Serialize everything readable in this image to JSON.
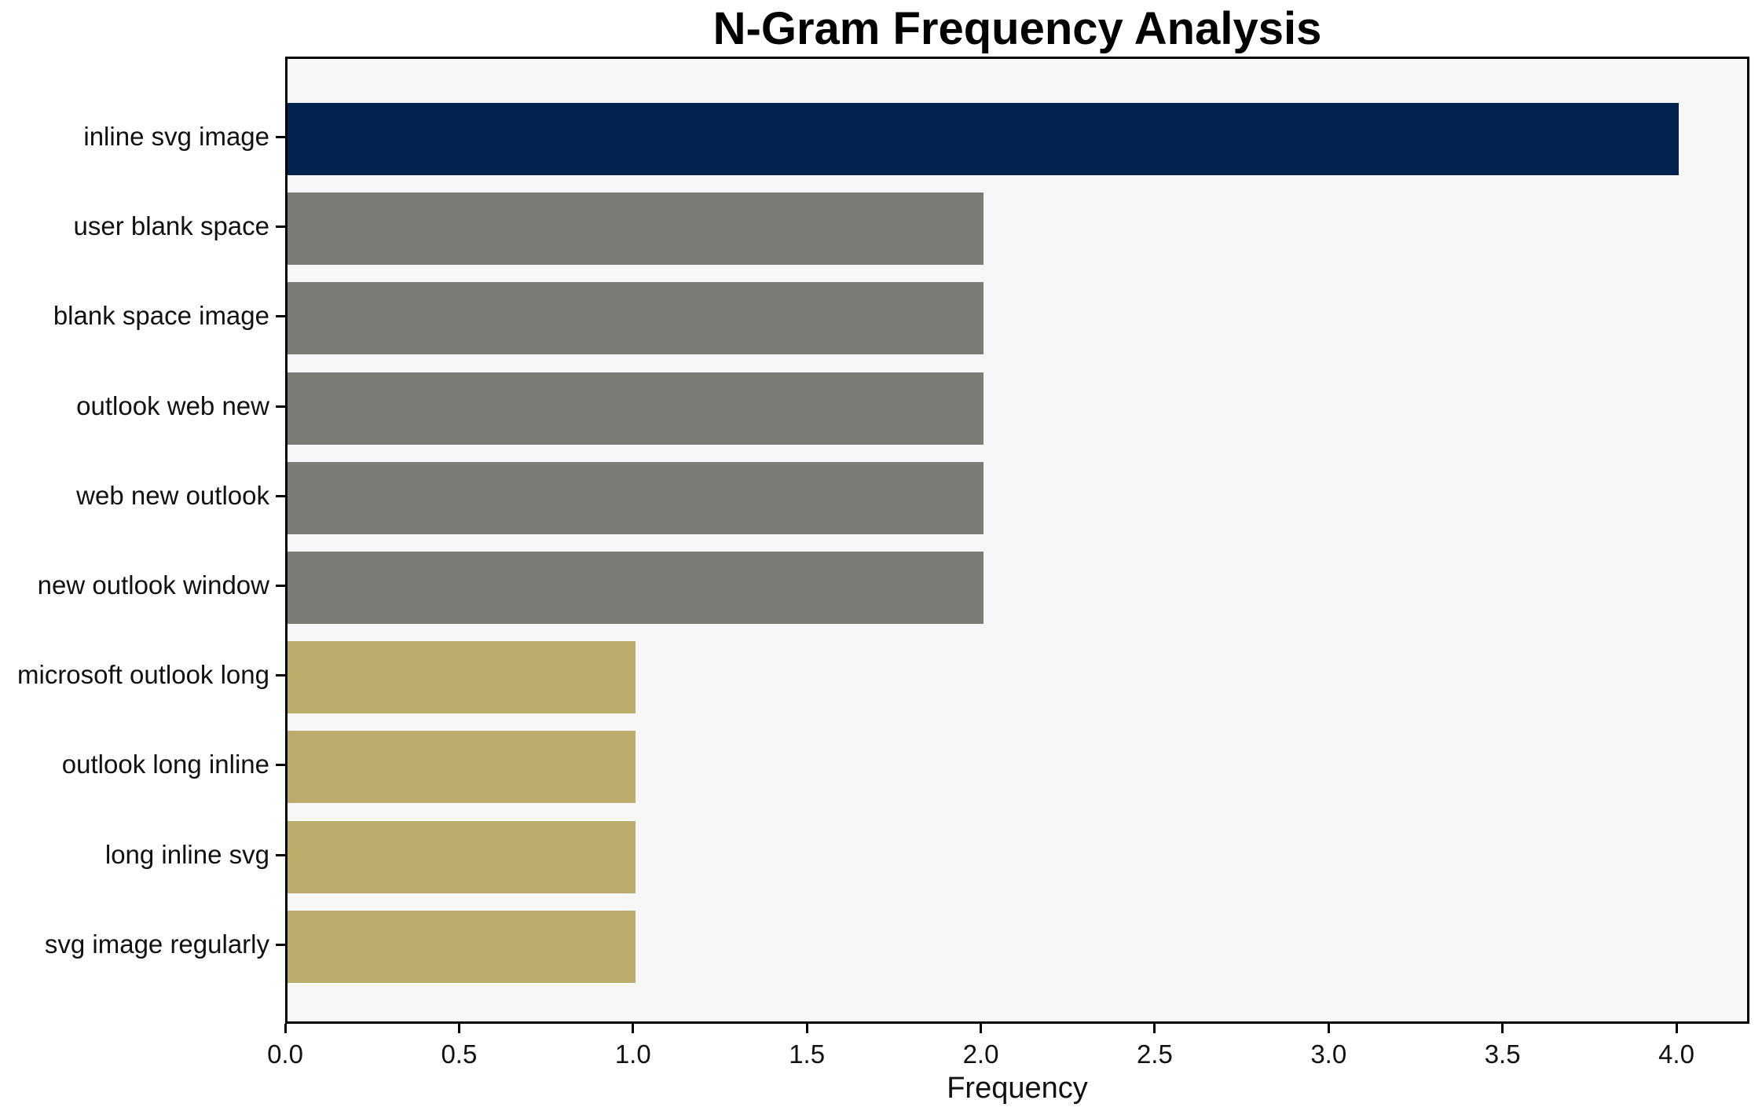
{
  "chart_data": {
    "type": "bar",
    "orientation": "horizontal",
    "title": "N-Gram Frequency Analysis",
    "xlabel": "Frequency",
    "ylabel": "",
    "categories": [
      "inline svg image",
      "user blank space",
      "blank space image",
      "outlook web new",
      "web new outlook",
      "new outlook window",
      "microsoft outlook long",
      "outlook long inline",
      "long inline svg",
      "svg image regularly"
    ],
    "values": [
      4,
      2,
      2,
      2,
      2,
      2,
      1,
      1,
      1,
      1
    ],
    "bar_colors": [
      "#03224D",
      "#7B7B77",
      "#7B7B77",
      "#7B7B77",
      "#7B7B77",
      "#7B7B77",
      "#BCAD6D",
      "#BCAD6D",
      "#BCAD6D",
      "#BCAD6D"
    ],
    "xticks": [
      "0.0",
      "0.5",
      "1.0",
      "1.5",
      "2.0",
      "2.5",
      "3.0",
      "3.5",
      "4.0"
    ],
    "xtick_values": [
      0,
      0.5,
      1,
      1.5,
      2,
      2.5,
      3,
      3.5,
      4
    ],
    "xlim": [
      0,
      4.21
    ],
    "grid": false,
    "legend": "none",
    "plot_background": "#F7F7F7",
    "figure_background": "#FFFFFF",
    "axis_color": "#000000"
  }
}
